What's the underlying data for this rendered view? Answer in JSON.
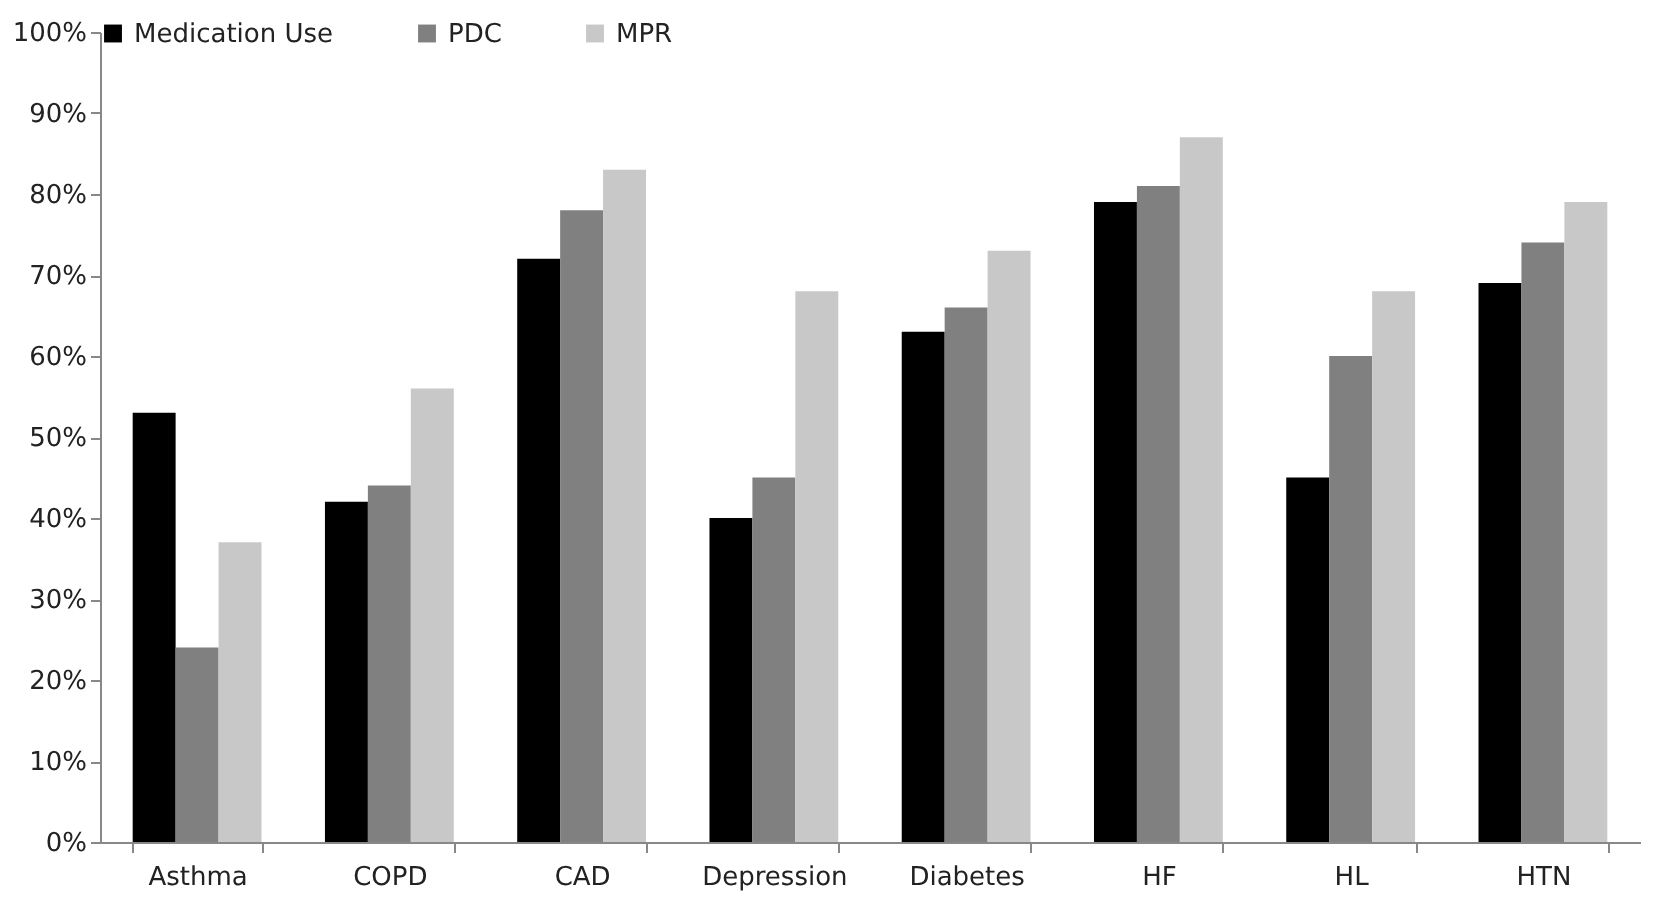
{
  "chart_data": {
    "type": "bar",
    "categories": [
      "Asthma",
      "COPD",
      "CAD",
      "Depression",
      "Diabetes",
      "HF",
      "HL",
      "HTN"
    ],
    "series": [
      {
        "name": "Medication Use",
        "color": "#000000",
        "values": [
          53,
          42,
          72,
          40,
          63,
          79,
          45,
          69
        ]
      },
      {
        "name": "PDC",
        "color": "#808080",
        "values": [
          24,
          44,
          78,
          45,
          66,
          81,
          60,
          74
        ]
      },
      {
        "name": "MPR",
        "color": "#c8c8c8",
        "values": [
          37,
          56,
          83,
          68,
          73,
          87,
          68,
          79
        ]
      }
    ],
    "ylim": [
      0,
      100
    ],
    "yticks": [
      {
        "value": 0,
        "label": "0%"
      },
      {
        "value": 10,
        "label": "10%"
      },
      {
        "value": 20,
        "label": "20%"
      },
      {
        "value": 30,
        "label": "30%"
      },
      {
        "value": 40,
        "label": "40%"
      },
      {
        "value": 50,
        "label": "50%"
      },
      {
        "value": 60,
        "label": "60%"
      },
      {
        "value": 70,
        "label": "70%"
      },
      {
        "value": 80,
        "label": "80%"
      },
      {
        "value": 90,
        "label": "90%"
      },
      {
        "value": 100,
        "label": "100%"
      }
    ],
    "grid": false,
    "legend": "top"
  }
}
